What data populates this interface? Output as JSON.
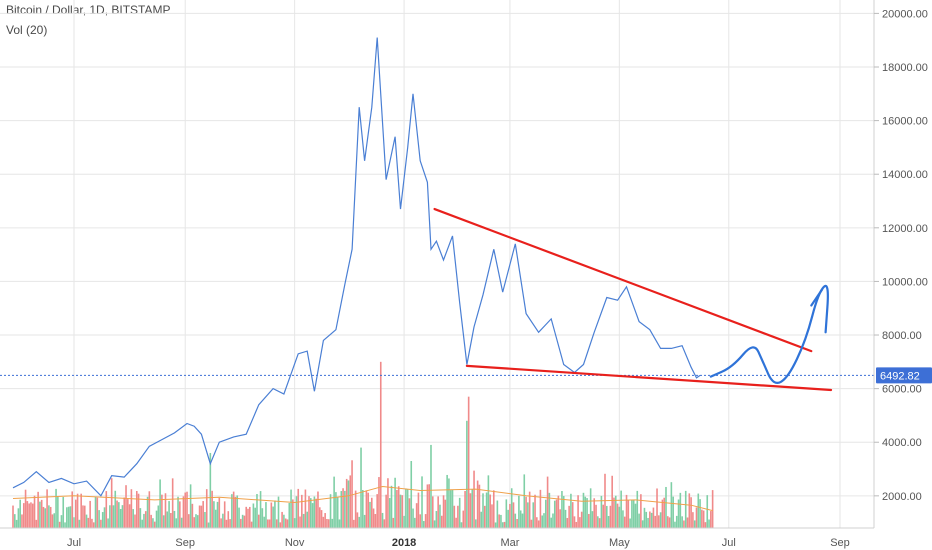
{
  "header": {
    "title": "Bitcoin / Dollar, 1D, BITSTAMP",
    "volume_label": "Vol (20)"
  },
  "colors": {
    "price_line": "#4a7fd4",
    "annotation_red": "#e8201c",
    "annotation_blue": "#2f73d8",
    "vol_up": "#7fcfa6",
    "vol_down": "#f08a8a",
    "vol_ma": "#f0a14a",
    "price_tag": "#3d6fd6",
    "grid": "#e6e6e6"
  },
  "chart_data": {
    "type": "line",
    "title": "Bitcoin / Dollar, 1D, BITSTAMP",
    "x_ticks": [
      "Jul",
      "Sep",
      "Nov",
      "2018",
      "Mar",
      "May",
      "Jul",
      "Sep"
    ],
    "y_ticks": [
      "2000.00",
      "4000.00",
      "6000.00",
      "8000.00",
      "10000.00",
      "12000.00",
      "14000.00",
      "16000.00",
      "18000.00",
      "20000.00"
    ],
    "y_range": [
      800,
      20500
    ],
    "current_price": 6492.82,
    "current_price_label": "6492.82",
    "grid": true,
    "series": [
      {
        "type": "line",
        "points": [
          [
            "2017-05-28",
            2300
          ],
          [
            "2017-06-03",
            2500
          ],
          [
            "2017-06-10",
            2900
          ],
          [
            "2017-06-17",
            2500
          ],
          [
            "2017-06-24",
            2650
          ],
          [
            "2017-07-01",
            2450
          ],
          [
            "2017-07-08",
            2550
          ],
          [
            "2017-07-16",
            2000
          ],
          [
            "2017-07-22",
            2750
          ],
          [
            "2017-07-29",
            2700
          ],
          [
            "2017-08-05",
            3200
          ],
          [
            "2017-08-12",
            3850
          ],
          [
            "2017-08-19",
            4100
          ],
          [
            "2017-08-26",
            4350
          ],
          [
            "2017-09-02",
            4700
          ],
          [
            "2017-09-06",
            4600
          ],
          [
            "2017-09-10",
            4300
          ],
          [
            "2017-09-15",
            3200
          ],
          [
            "2017-09-20",
            4000
          ],
          [
            "2017-09-28",
            4200
          ],
          [
            "2017-10-05",
            4300
          ],
          [
            "2017-10-12",
            5400
          ],
          [
            "2017-10-20",
            6000
          ],
          [
            "2017-10-26",
            5800
          ],
          [
            "2017-11-03",
            7300
          ],
          [
            "2017-11-08",
            7400
          ],
          [
            "2017-11-12",
            5900
          ],
          [
            "2017-11-17",
            7800
          ],
          [
            "2017-11-24",
            8200
          ],
          [
            "2017-11-29",
            9900
          ],
          [
            "2017-12-03",
            11200
          ],
          [
            "2017-12-07",
            16500
          ],
          [
            "2017-12-10",
            14500
          ],
          [
            "2017-12-14",
            16500
          ],
          [
            "2017-12-17",
            19100
          ],
          [
            "2017-12-22",
            13800
          ],
          [
            "2017-12-27",
            15400
          ],
          [
            "2017-12-30",
            12700
          ],
          [
            "2018-01-03",
            15000
          ],
          [
            "2018-01-06",
            17000
          ],
          [
            "2018-01-10",
            14500
          ],
          [
            "2018-01-14",
            13700
          ],
          [
            "2018-01-16",
            11200
          ],
          [
            "2018-01-19",
            11500
          ],
          [
            "2018-01-23",
            10800
          ],
          [
            "2018-01-28",
            11700
          ],
          [
            "2018-02-01",
            9200
          ],
          [
            "2018-02-05",
            6900
          ],
          [
            "2018-02-09",
            8300
          ],
          [
            "2018-02-14",
            9500
          ],
          [
            "2018-02-20",
            11200
          ],
          [
            "2018-02-25",
            9600
          ],
          [
            "2018-03-04",
            11400
          ],
          [
            "2018-03-10",
            8800
          ],
          [
            "2018-03-17",
            8100
          ],
          [
            "2018-03-24",
            8600
          ],
          [
            "2018-03-31",
            6900
          ],
          [
            "2018-04-06",
            6600
          ],
          [
            "2018-04-11",
            6900
          ],
          [
            "2018-04-17",
            8100
          ],
          [
            "2018-04-24",
            9400
          ],
          [
            "2018-04-30",
            9300
          ],
          [
            "2018-05-05",
            9800
          ],
          [
            "2018-05-12",
            8500
          ],
          [
            "2018-05-18",
            8200
          ],
          [
            "2018-05-24",
            7500
          ],
          [
            "2018-05-30",
            7500
          ],
          [
            "2018-06-05",
            7600
          ],
          [
            "2018-06-10",
            6800
          ],
          [
            "2018-06-13",
            6400
          ],
          [
            "2018-06-15",
            6492
          ]
        ]
      }
    ],
    "annotations": [
      {
        "type": "line",
        "color": "red",
        "from": [
          "2018-01-18",
          12700
        ],
        "to": [
          "2018-08-16",
          7400
        ]
      },
      {
        "type": "line",
        "color": "red",
        "from": [
          "2018-02-05",
          6850
        ],
        "to": [
          "2018-08-27",
          5950
        ]
      },
      {
        "type": "path",
        "color": "blue",
        "points": [
          [
            "2018-06-21",
            6450
          ],
          [
            "2018-07-03",
            6800
          ],
          [
            "2018-07-15",
            7750
          ],
          [
            "2018-07-20",
            7000
          ],
          [
            "2018-07-26",
            6100
          ],
          [
            "2018-08-03",
            6400
          ],
          [
            "2018-08-13",
            7800
          ],
          [
            "2018-08-20",
            9600
          ],
          [
            "2018-08-26",
            10000
          ],
          [
            "2018-08-24",
            8100
          ]
        ]
      },
      {
        "type": "path",
        "color": "blue",
        "points": [
          [
            "2018-08-16",
            9100
          ],
          [
            "2018-08-22",
            9700
          ]
        ]
      }
    ],
    "volume": {
      "label": "Vol (20)",
      "ma_points": [
        [
          "2017-05-28",
          1900
        ],
        [
          "2017-07-01",
          2000
        ],
        [
          "2017-08-15",
          1850
        ],
        [
          "2017-09-20",
          1950
        ],
        [
          "2017-11-01",
          1750
        ],
        [
          "2017-12-01",
          2000
        ],
        [
          "2017-12-20",
          2350
        ],
        [
          "2018-01-10",
          2200
        ],
        [
          "2018-02-10",
          2250
        ],
        [
          "2018-03-10",
          2000
        ],
        [
          "2018-04-10",
          1800
        ],
        [
          "2018-05-10",
          1850
        ],
        [
          "2018-06-10",
          1650
        ],
        [
          "2018-06-22",
          1450
        ]
      ]
    }
  }
}
